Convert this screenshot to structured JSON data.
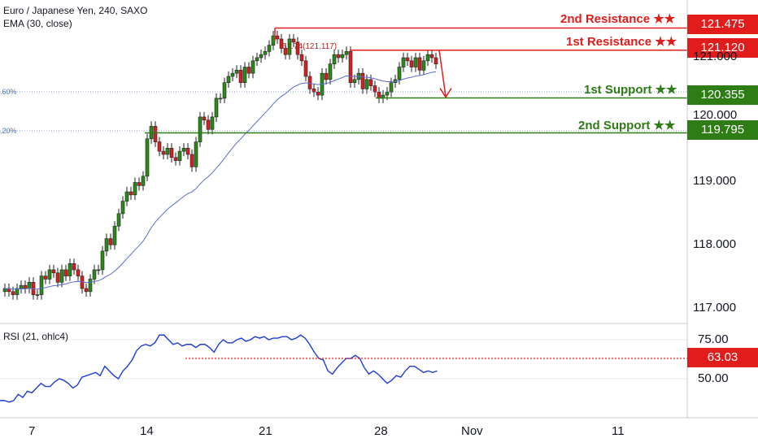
{
  "header": {
    "title": "Euro / Japanese Yen, 240, SAXO",
    "indicator": "EMA (30, close)",
    "rsi_label": "RSI (21, ohlc4)"
  },
  "levels": [
    {
      "id": "r2",
      "label": "2nd Resistance ★★",
      "price": 121.475,
      "price_text": "121.475",
      "color": "#e21b1b"
    },
    {
      "id": "r1",
      "label": "1st Resistance ★★",
      "price": 121.12,
      "price_text": "121.120",
      "color": "#e21b1b"
    },
    {
      "id": "s1",
      "label": "1st Support ★★",
      "price": 120.355,
      "price_text": "120.355",
      "color": "#2e7d14"
    },
    {
      "id": "s2",
      "label": "2nd Support ★★",
      "price": 119.795,
      "price_text": "119.795",
      "color": "#2e7d14"
    }
  ],
  "fib_labels": {
    "upper": ".60%",
    "lower": ".20%"
  },
  "annotation": "61.74(121.117)",
  "chart_data": {
    "type": "candlestick",
    "title": "Euro / Japanese Yen, 240, SAXO",
    "ylim": [
      116.7,
      121.9
    ],
    "y_ticks": [
      117,
      118,
      119,
      120,
      121
    ],
    "y_tick_labels": [
      "117.000",
      "118.000",
      "119.000",
      "120.000",
      "121.000"
    ],
    "x_tick_labels": [
      "7",
      "14",
      "21",
      "28",
      "Nov",
      "11"
    ],
    "grid": false,
    "close_series": [
      117.3,
      117.25,
      117.2,
      117.3,
      117.35,
      117.3,
      117.4,
      117.2,
      117.2,
      117.5,
      117.45,
      117.6,
      117.55,
      117.4,
      117.6,
      117.5,
      117.7,
      117.6,
      117.5,
      117.3,
      117.25,
      117.45,
      117.6,
      117.6,
      117.9,
      118.1,
      118.0,
      118.3,
      118.5,
      118.7,
      118.85,
      118.8,
      119.0,
      118.95,
      119.1,
      119.7,
      119.9,
      119.65,
      119.5,
      119.45,
      119.55,
      119.4,
      119.35,
      119.5,
      119.55,
      119.45,
      119.25,
      119.65,
      120.05,
      120.0,
      119.85,
      120.05,
      120.35,
      120.35,
      120.6,
      120.7,
      120.75,
      120.8,
      120.6,
      120.85,
      120.75,
      120.95,
      121.0,
      121.05,
      121.1,
      121.2,
      121.35,
      121.3,
      121.15,
      121.05,
      121.3,
      121.25,
      121.05,
      120.95,
      120.7,
      120.5,
      120.45,
      120.4,
      120.75,
      120.65,
      120.9,
      121.05,
      121.0,
      121.05,
      121.1,
      120.6,
      120.65,
      120.75,
      120.5,
      120.65,
      120.55,
      120.45,
      120.35,
      120.4,
      120.45,
      120.6,
      120.65,
      120.85,
      121.0,
      120.95,
      120.85,
      121.0,
      120.8,
      120.95,
      121.05,
      121.0,
      120.9
    ],
    "ema_label": "EMA (30, close)",
    "rsi": {
      "label": "RSI (21, ohlc4)",
      "ylim": [
        30,
        85
      ],
      "ticks": [
        75,
        50
      ],
      "tick_labels": [
        "75.00",
        "50.00"
      ],
      "level": 63.03,
      "level_text": "63.03",
      "values": [
        36,
        36,
        35,
        36,
        40,
        38,
        42,
        41,
        44,
        47,
        45,
        45,
        48,
        50,
        49,
        47,
        44,
        46,
        51,
        52,
        53,
        54,
        52,
        58,
        55,
        52,
        50,
        55,
        58,
        62,
        68,
        71,
        72,
        71,
        73,
        78,
        78,
        75,
        72,
        73,
        71,
        72,
        72,
        70,
        72,
        72,
        70,
        67,
        72,
        75,
        73,
        73,
        75,
        76,
        74,
        75,
        77,
        76,
        77,
        75,
        76,
        76,
        77,
        77,
        75,
        76,
        78,
        76,
        72,
        67,
        63,
        62,
        55,
        53,
        57,
        60,
        63,
        63,
        65,
        63,
        57,
        53,
        55,
        53,
        50,
        47,
        49,
        52,
        51,
        55,
        58,
        58,
        56,
        54,
        55,
        54,
        55
      ]
    },
    "forecast_arrow": {
      "from": 121.12,
      "to": 120.355
    }
  }
}
